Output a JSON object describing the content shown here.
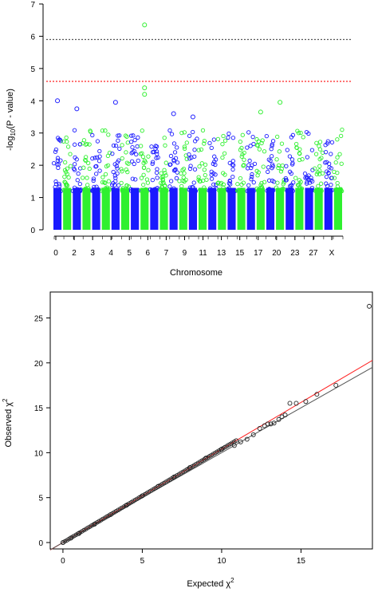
{
  "chart_data": [
    {
      "type": "scatter",
      "title": "",
      "xlabel": "Chromosome",
      "ylabel_main": "-log",
      "ylabel_sub": "10",
      "ylabel_rest": "(P - value)",
      "ylim": [
        0,
        7
      ],
      "y_ticks": [
        "0",
        "1",
        "2",
        "3",
        "4",
        "5",
        "6",
        "7"
      ],
      "x_ticks": [
        "0",
        "2",
        "3",
        "4",
        "5",
        "6",
        "7",
        "9",
        "11",
        "13",
        "15",
        "17",
        "20",
        "23",
        "27",
        "X"
      ],
      "colors": {
        "odd": "#1a1aff",
        "even": "#2ff02f"
      },
      "threshold_lines": [
        {
          "value": 5.9,
          "color": "#555555",
          "style": "dotted"
        },
        {
          "value": 4.6,
          "color": "#ff2222",
          "style": "dotted"
        }
      ],
      "chromosome_count": 30,
      "notable_points": [
        {
          "chromosome_index": 0,
          "value": 4.0
        },
        {
          "chromosome_index": 9,
          "value": 6.35
        },
        {
          "chromosome_index": 9,
          "value": 4.4
        },
        {
          "chromosome_index": 9,
          "value": 4.2
        },
        {
          "chromosome_index": 6,
          "value": 3.95
        },
        {
          "chromosome_index": 2,
          "value": 3.75
        },
        {
          "chromosome_index": 23,
          "value": 3.95
        },
        {
          "chromosome_index": 21,
          "value": 3.65
        },
        {
          "chromosome_index": 12,
          "value": 3.6
        },
        {
          "chromosome_index": 14,
          "value": 3.5
        }
      ]
    },
    {
      "type": "scatter",
      "title": "",
      "xlabel": "Expected",
      "ylabel": "Observed",
      "chi_symbol": "χ",
      "xlim": [
        0,
        19.5
      ],
      "ylim": [
        0,
        27
      ],
      "x_ticks": [
        "0",
        "5",
        "10",
        "15"
      ],
      "y_ticks": [
        "0",
        "5",
        "10",
        "15",
        "20",
        "25"
      ],
      "reference_lines": [
        {
          "name": "",
          "color": "#ff2222",
          "slope": 1.04
        },
        {
          "name": "",
          "color": "#555555",
          "slope": 1.0
        }
      ],
      "points": [
        [
          0.0,
          0.0
        ],
        [
          0.5,
          0.5
        ],
        [
          1,
          1.0
        ],
        [
          2,
          2.05
        ],
        [
          3,
          3.1
        ],
        [
          4,
          4.15
        ],
        [
          5,
          5.2
        ],
        [
          6,
          6.25
        ],
        [
          7,
          7.3
        ],
        [
          8,
          8.35
        ],
        [
          9,
          9.4
        ],
        [
          10,
          10.4
        ],
        [
          10.8,
          10.8
        ],
        [
          11.2,
          11.2
        ],
        [
          11.6,
          11.5
        ],
        [
          12.0,
          12.0
        ],
        [
          12.4,
          12.7
        ],
        [
          12.7,
          13.0
        ],
        [
          12.9,
          13.2
        ],
        [
          13.1,
          13.2
        ],
        [
          13.3,
          13.3
        ],
        [
          13.6,
          13.7
        ],
        [
          13.8,
          14.0
        ],
        [
          14.0,
          14.2
        ],
        [
          14.3,
          15.5
        ],
        [
          14.7,
          15.5
        ],
        [
          15.3,
          15.7
        ],
        [
          16.0,
          16.5
        ],
        [
          17.2,
          17.5
        ],
        [
          19.3,
          26.3
        ]
      ]
    }
  ]
}
